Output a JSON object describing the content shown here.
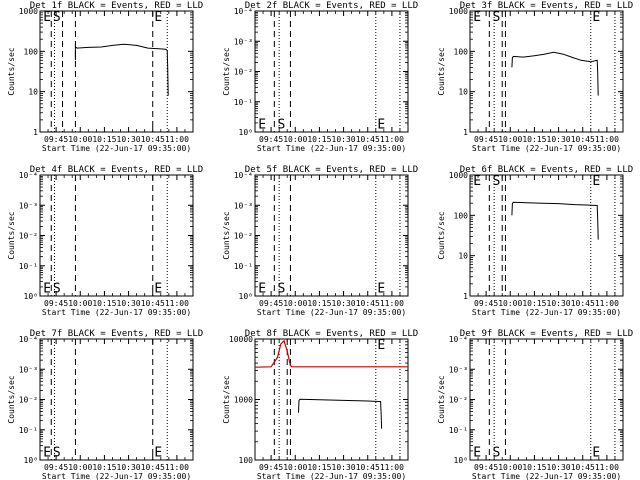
{
  "chart_data": [
    {
      "type": "line",
      "title": "Det 1f BLACK = Events, RED = LLD",
      "xlabel": "Start Time (22-Jun-17 09:35:00)",
      "ylabel": "Counts/sec",
      "yscale": "log",
      "ylim": [
        1,
        1000
      ],
      "yticks": [
        "1",
        "10",
        "100",
        "1000"
      ],
      "xrange_min": [
        0,
        95
      ],
      "xticks": [
        {
          "t": 10,
          "label": "09:45"
        },
        {
          "t": 25,
          "label": "10:00"
        },
        {
          "t": 40,
          "label": "10:15"
        },
        {
          "t": 55,
          "label": "10:30"
        },
        {
          "t": 70,
          "label": "10:45"
        },
        {
          "t": 85,
          "label": "11:00"
        }
      ],
      "vlines": {
        "dashed": [
          7,
          14,
          22,
          70
        ],
        "dotted": [
          9,
          79
        ]
      },
      "markers": [
        {
          "text": "E",
          "t": 2,
          "y": 1000
        },
        {
          "text": "S",
          "t": 8,
          "y": 1000
        },
        {
          "text": "E",
          "t": 71,
          "y": 1000
        }
      ],
      "series": [
        {
          "color": "#000000",
          "x": [
            22,
            22,
            23,
            30,
            38,
            45,
            52,
            60,
            67,
            75,
            78,
            78.5,
            79,
            79.3,
            79.6
          ],
          "y": [
            60,
            130,
            120,
            125,
            128,
            140,
            150,
            140,
            120,
            115,
            112,
            110,
            105,
            40,
            8
          ]
        }
      ]
    },
    {
      "type": "line",
      "title": "Det 2f BLACK = Events, RED = LLD",
      "xlabel": "Start Time (22-Jun-17 09:35:00)",
      "ylabel": "Counts/sec",
      "yscale": "log",
      "ylim": [
        1,
        10000
      ],
      "yticks": [
        "10⁰",
        "10⁻¹",
        "10⁻²",
        "10⁻³",
        "10⁻⁴"
      ],
      "xrange_min": [
        0,
        95
      ],
      "xticks": [
        {
          "t": 10,
          "label": "09:45"
        },
        {
          "t": 25,
          "label": "10:00"
        },
        {
          "t": 40,
          "label": "10:15"
        },
        {
          "t": 55,
          "label": "10:30"
        },
        {
          "t": 70,
          "label": "10:45"
        },
        {
          "t": 85,
          "label": "11:00"
        }
      ],
      "vlines": {
        "dashed": [
          12,
          22
        ],
        "dotted": [
          15,
          75,
          90
        ]
      },
      "markers": [
        {
          "text": "E",
          "t": 2,
          "y": 1.3
        },
        {
          "text": "S",
          "t": 14,
          "y": 1.3
        },
        {
          "text": "E",
          "t": 76,
          "y": 1.3
        }
      ],
      "series": []
    },
    {
      "type": "line",
      "title": "Det 3f BLACK = Events, RED = LLD",
      "xlabel": "Start Time (22-Jun-17 09:35:00)",
      "ylabel": "Counts/sec",
      "yscale": "log",
      "ylim": [
        1,
        1000
      ],
      "yticks": [
        "1",
        "10",
        "100",
        "1000"
      ],
      "xrange_min": [
        0,
        95
      ],
      "xticks": [
        {
          "t": 10,
          "label": "09:45"
        },
        {
          "t": 25,
          "label": "10:00"
        },
        {
          "t": 40,
          "label": "10:15"
        },
        {
          "t": 55,
          "label": "10:30"
        },
        {
          "t": 70,
          "label": "10:45"
        },
        {
          "t": 85,
          "label": "11:00"
        }
      ],
      "vlines": {
        "dashed": [
          12,
          20,
          22
        ],
        "dotted": [
          15,
          75,
          90
        ]
      },
      "markers": [
        {
          "text": "E",
          "t": 2,
          "y": 1000
        },
        {
          "text": "S",
          "t": 14,
          "y": 1000
        },
        {
          "text": "E",
          "t": 76,
          "y": 1000
        }
      ],
      "series": [
        {
          "color": "#000000",
          "x": [
            26,
            26.3,
            27,
            33,
            40,
            46,
            52,
            58,
            63,
            69,
            75,
            79,
            79.3,
            79.6
          ],
          "y": [
            40,
            70,
            75,
            72,
            78,
            85,
            95,
            85,
            72,
            60,
            55,
            60,
            30,
            8
          ]
        }
      ]
    },
    {
      "type": "line",
      "title": "Det 4f BLACK = Events, RED = LLD",
      "xlabel": "Start Time (22-Jun-17 09:35:00)",
      "ylabel": "Counts/sec",
      "yscale": "log",
      "ylim": [
        1,
        10000
      ],
      "yticks": [
        "10⁰",
        "10⁻¹",
        "10⁻²",
        "10⁻³",
        "10⁻⁴"
      ],
      "xrange_min": [
        0,
        95
      ],
      "xticks": [
        {
          "t": 10,
          "label": "09:45"
        },
        {
          "t": 25,
          "label": "10:00"
        },
        {
          "t": 40,
          "label": "10:15"
        },
        {
          "t": 55,
          "label": "10:30"
        },
        {
          "t": 70,
          "label": "10:45"
        },
        {
          "t": 85,
          "label": "11:00"
        }
      ],
      "vlines": {
        "dashed": [
          7,
          22,
          70
        ],
        "dotted": [
          9,
          79
        ]
      },
      "markers": [
        {
          "text": "E",
          "t": 2,
          "y": 1.3
        },
        {
          "text": "S",
          "t": 8,
          "y": 1.3
        },
        {
          "text": "E",
          "t": 71,
          "y": 1.3
        }
      ],
      "series": []
    },
    {
      "type": "line",
      "title": "Det 5f BLACK = Events, RED = LLD",
      "xlabel": "Start Time (22-Jun-17 09:35:00)",
      "ylabel": "Counts/sec",
      "yscale": "log",
      "ylim": [
        1,
        10000
      ],
      "yticks": [
        "10⁰",
        "10⁻¹",
        "10⁻²",
        "10⁻³",
        "10⁻⁴"
      ],
      "xrange_min": [
        0,
        95
      ],
      "xticks": [
        {
          "t": 10,
          "label": "09:45"
        },
        {
          "t": 25,
          "label": "10:00"
        },
        {
          "t": 40,
          "label": "10:15"
        },
        {
          "t": 55,
          "label": "10:30"
        },
        {
          "t": 70,
          "label": "10:45"
        },
        {
          "t": 85,
          "label": "11:00"
        }
      ],
      "vlines": {
        "dashed": [
          12,
          22
        ],
        "dotted": [
          15,
          75,
          90
        ]
      },
      "markers": [
        {
          "text": "E",
          "t": 2,
          "y": 1.3
        },
        {
          "text": "S",
          "t": 14,
          "y": 1.3
        },
        {
          "text": "E",
          "t": 76,
          "y": 1.3
        }
      ],
      "series": []
    },
    {
      "type": "line",
      "title": "Det 6f BLACK = Events, RED = LLD",
      "xlabel": "Start Time (22-Jun-17 09:35:00)",
      "ylabel": "Counts/sec",
      "yscale": "log",
      "ylim": [
        1,
        1000
      ],
      "yticks": [
        "1",
        "10",
        "100",
        "1000"
      ],
      "xrange_min": [
        0,
        95
      ],
      "xticks": [
        {
          "t": 10,
          "label": "09:45"
        },
        {
          "t": 25,
          "label": "10:00"
        },
        {
          "t": 40,
          "label": "10:15"
        },
        {
          "t": 55,
          "label": "10:30"
        },
        {
          "t": 70,
          "label": "10:45"
        },
        {
          "t": 85,
          "label": "11:00"
        }
      ],
      "vlines": {
        "dashed": [
          12,
          20,
          22
        ],
        "dotted": [
          15,
          75,
          90
        ]
      },
      "markers": [
        {
          "text": "E",
          "t": 2,
          "y": 1000
        },
        {
          "text": "S",
          "t": 14,
          "y": 1000
        },
        {
          "text": "E",
          "t": 76,
          "y": 1000
        }
      ],
      "series": [
        {
          "color": "#000000",
          "x": [
            26,
            26.3,
            27,
            35,
            45,
            55,
            65,
            72,
            79,
            79.3,
            79.6
          ],
          "y": [
            100,
            200,
            210,
            205,
            200,
            195,
            185,
            180,
            175,
            80,
            25
          ]
        }
      ]
    },
    {
      "type": "line",
      "title": "Det 7f BLACK = Events, RED = LLD",
      "xlabel": "Start Time (22-Jun-17 09:35:00)",
      "ylabel": "Counts/sec",
      "yscale": "log",
      "ylim": [
        1,
        10000
      ],
      "yticks": [
        "10⁰",
        "10⁻¹",
        "10⁻²",
        "10⁻³",
        "10⁻⁴"
      ],
      "xrange_min": [
        0,
        95
      ],
      "xticks": [
        {
          "t": 10,
          "label": "09:45"
        },
        {
          "t": 25,
          "label": "10:00"
        },
        {
          "t": 40,
          "label": "10:15"
        },
        {
          "t": 55,
          "label": "10:30"
        },
        {
          "t": 70,
          "label": "10:45"
        },
        {
          "t": 85,
          "label": "11:00"
        }
      ],
      "vlines": {
        "dashed": [
          7,
          22,
          70
        ],
        "dotted": [
          9,
          79
        ]
      },
      "markers": [
        {
          "text": "E",
          "t": 2,
          "y": 1.3
        },
        {
          "text": "S",
          "t": 8,
          "y": 1.3
        },
        {
          "text": "E",
          "t": 71,
          "y": 1.3
        }
      ],
      "series": []
    },
    {
      "type": "line",
      "title": "Det 8f BLACK = Events, RED = LLD",
      "xlabel": "Start Time (22-Jun-17 09:35:00)",
      "ylabel": "Counts/sec",
      "yscale": "log",
      "ylim": [
        10,
        10000
      ],
      "yticks": [
        "100",
        "1000",
        "10000"
      ],
      "xrange_min": [
        0,
        95
      ],
      "xticks": [
        {
          "t": 10,
          "label": "09:45"
        },
        {
          "t": 25,
          "label": "10:00"
        },
        {
          "t": 40,
          "label": "10:15"
        },
        {
          "t": 55,
          "label": "10:30"
        },
        {
          "t": 70,
          "label": "10:45"
        },
        {
          "t": 85,
          "label": "11:00"
        }
      ],
      "vlines": {
        "dashed": [
          12,
          20,
          22
        ],
        "dotted": [
          15,
          75,
          90
        ]
      },
      "markers": [
        {
          "text": "E",
          "t": 76,
          "y": 10000
        }
      ],
      "series": [
        {
          "color": "#cc0000",
          "x": [
            0,
            10,
            14,
            16,
            18,
            20,
            22,
            23,
            95
          ],
          "y": [
            2000,
            2050,
            3500,
            7500,
            9000,
            5000,
            2200,
            2050,
            2050
          ]
        },
        {
          "color": "#000000",
          "x": [
            27,
            27.3,
            28,
            40,
            55,
            70,
            78,
            78.3,
            78.6
          ],
          "y": [
            150,
            300,
            320,
            310,
            300,
            290,
            280,
            150,
            60
          ]
        }
      ]
    },
    {
      "type": "line",
      "title": "Det 9f BLACK = Events, RED = LLD",
      "xlabel": "Start Time (22-Jun-17 09:35:00)",
      "ylabel": "Counts/sec",
      "yscale": "log",
      "ylim": [
        1,
        10000
      ],
      "yticks": [
        "10⁰",
        "10⁻¹",
        "10⁻²",
        "10⁻³",
        "10⁻⁴"
      ],
      "xrange_min": [
        0,
        95
      ],
      "xticks": [
        {
          "t": 10,
          "label": "09:45"
        },
        {
          "t": 25,
          "label": "10:00"
        },
        {
          "t": 40,
          "label": "10:15"
        },
        {
          "t": 55,
          "label": "10:30"
        },
        {
          "t": 70,
          "label": "10:45"
        },
        {
          "t": 85,
          "label": "11:00"
        }
      ],
      "vlines": {
        "dashed": [
          12,
          22
        ],
        "dotted": [
          15,
          75,
          90
        ]
      },
      "markers": [
        {
          "text": "E",
          "t": 2,
          "y": 1.3
        },
        {
          "text": "S",
          "t": 14,
          "y": 1.3
        },
        {
          "text": "E",
          "t": 76,
          "y": 1.3
        }
      ],
      "series": []
    }
  ]
}
